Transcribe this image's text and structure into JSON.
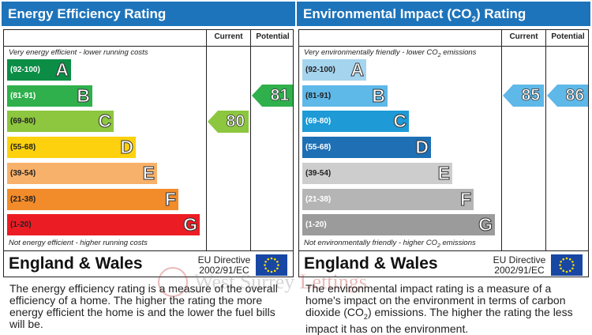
{
  "chart_data": [
    {
      "type": "bar",
      "title": "Energy Efficiency Rating",
      "column_headers": {
        "current": "Current",
        "potential": "Potential"
      },
      "top_note": "Very energy efficient - lower running costs",
      "bottom_note": "Not energy efficient - higher running costs",
      "bands": [
        {
          "range": "(92-100)",
          "letter": "A",
          "color": "#0c8d46",
          "range_color": "#ffffff"
        },
        {
          "range": "(81-91)",
          "letter": "B",
          "color": "#2fb04c",
          "range_color": "#ffffff"
        },
        {
          "range": "(69-80)",
          "letter": "C",
          "color": "#8dc63f",
          "range_color": "#222222"
        },
        {
          "range": "(55-68)",
          "letter": "D",
          "color": "#fdd10d",
          "range_color": "#222222"
        },
        {
          "range": "(39-54)",
          "letter": "E",
          "color": "#f8b16a",
          "range_color": "#222222"
        },
        {
          "range": "(21-38)",
          "letter": "F",
          "color": "#f28b2a",
          "range_color": "#222222"
        },
        {
          "range": "(1-20)",
          "letter": "G",
          "color": "#ec1c24",
          "range_color": "#222222"
        }
      ],
      "current": {
        "value": 80,
        "band": "C",
        "color": "#8dc63f"
      },
      "potential": {
        "value": 81,
        "band": "B",
        "color": "#2fb04c"
      },
      "region": "England & Wales",
      "directive_line1": "EU Directive",
      "directive_line2": "2002/91/EC",
      "description": "The energy efficiency rating is a measure of the overall efficiency of a home. The higher the rating the more energy efficient the home is and the lower the fuel bills will be."
    },
    {
      "type": "bar",
      "title": "Environmental Impact (CO₂) Rating",
      "column_headers": {
        "current": "Current",
        "potential": "Potential"
      },
      "top_note": "Very environmentally friendly - lower CO₂ emissions",
      "bottom_note": "Not environmentally friendly - higher CO₂ emissions",
      "bands": [
        {
          "range": "(92-100)",
          "letter": "A",
          "color": "#a5d4ef",
          "range_color": "#222222"
        },
        {
          "range": "(81-91)",
          "letter": "B",
          "color": "#5eb8e8",
          "range_color": "#222222"
        },
        {
          "range": "(69-80)",
          "letter": "C",
          "color": "#1e9ad6",
          "range_color": "#ffffff"
        },
        {
          "range": "(55-68)",
          "letter": "D",
          "color": "#1e6fb4",
          "range_color": "#ffffff"
        },
        {
          "range": "(39-54)",
          "letter": "E",
          "color": "#cdcdcd",
          "range_color": "#222222"
        },
        {
          "range": "(21-38)",
          "letter": "F",
          "color": "#b5b5b5",
          "range_color": "#ffffff"
        },
        {
          "range": "(1-20)",
          "letter": "G",
          "color": "#9b9b9b",
          "range_color": "#ffffff"
        }
      ],
      "current": {
        "value": 85,
        "band": "B",
        "color": "#5eb8e8"
      },
      "potential": {
        "value": 86,
        "band": "B",
        "color": "#5eb8e8"
      },
      "region": "England & Wales",
      "directive_line1": "EU Directive",
      "directive_line2": "2002/91/EC",
      "description": "The environmental impact rating is a measure of a home's impact on the environment in terms of carbon dioxide (CO₂) emissions. The higher the rating the less impact it has on the environment."
    }
  ],
  "watermark": {
    "brand": "West Surrey Lettings",
    "logo": "WS"
  },
  "colors": {
    "title_bar": "#1d74bb",
    "eu_flag": "#1846a3",
    "eu_stars": "#ffde00"
  }
}
